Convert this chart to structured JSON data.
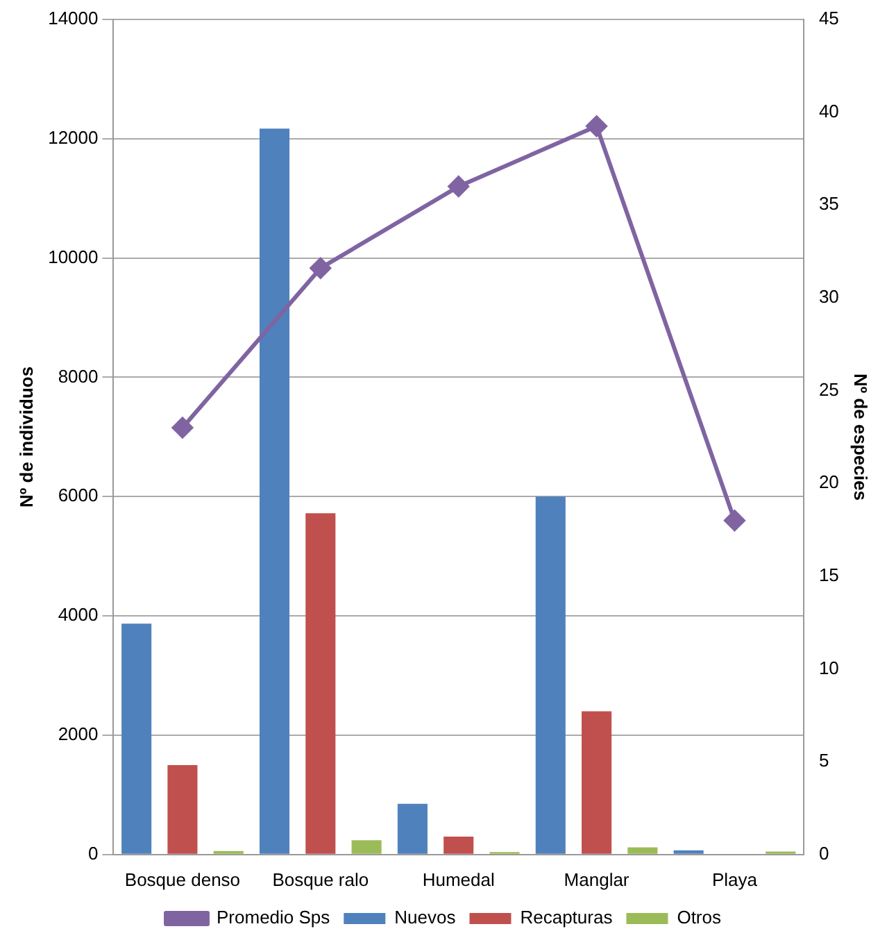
{
  "chart_data": {
    "type": "bar",
    "categories": [
      "Bosque denso",
      "Bosque ralo",
      "Humedal",
      "Manglar",
      "Playa"
    ],
    "ylabel": "Nº de individuos",
    "y2label": "Nº de especies",
    "series": [
      {
        "name": "Nuevos",
        "color": "#4f81bd",
        "values": [
          3870,
          12170,
          850,
          6000,
          70
        ]
      },
      {
        "name": "Recapturas",
        "color": "#c0504d",
        "values": [
          1500,
          5720,
          300,
          2400,
          0
        ]
      },
      {
        "name": "Otros",
        "color": "#9bbb59",
        "values": [
          60,
          240,
          40,
          120,
          50
        ]
      },
      {
        "name": "Promedio Sps",
        "type": "line",
        "axis": "y2",
        "color": "#8064a2",
        "values": [
          23.0,
          31.6,
          36.0,
          39.25,
          18.0
        ]
      }
    ],
    "ylim": [
      0,
      14000
    ],
    "yticks": [
      0,
      2000,
      4000,
      6000,
      8000,
      10000,
      12000,
      14000
    ],
    "y2lim": [
      0,
      45
    ],
    "y2ticks": [
      0,
      5,
      10,
      15,
      20,
      25,
      30,
      35,
      40,
      45
    ],
    "grid": "y",
    "legend": "bottom",
    "marker": "diamond"
  }
}
